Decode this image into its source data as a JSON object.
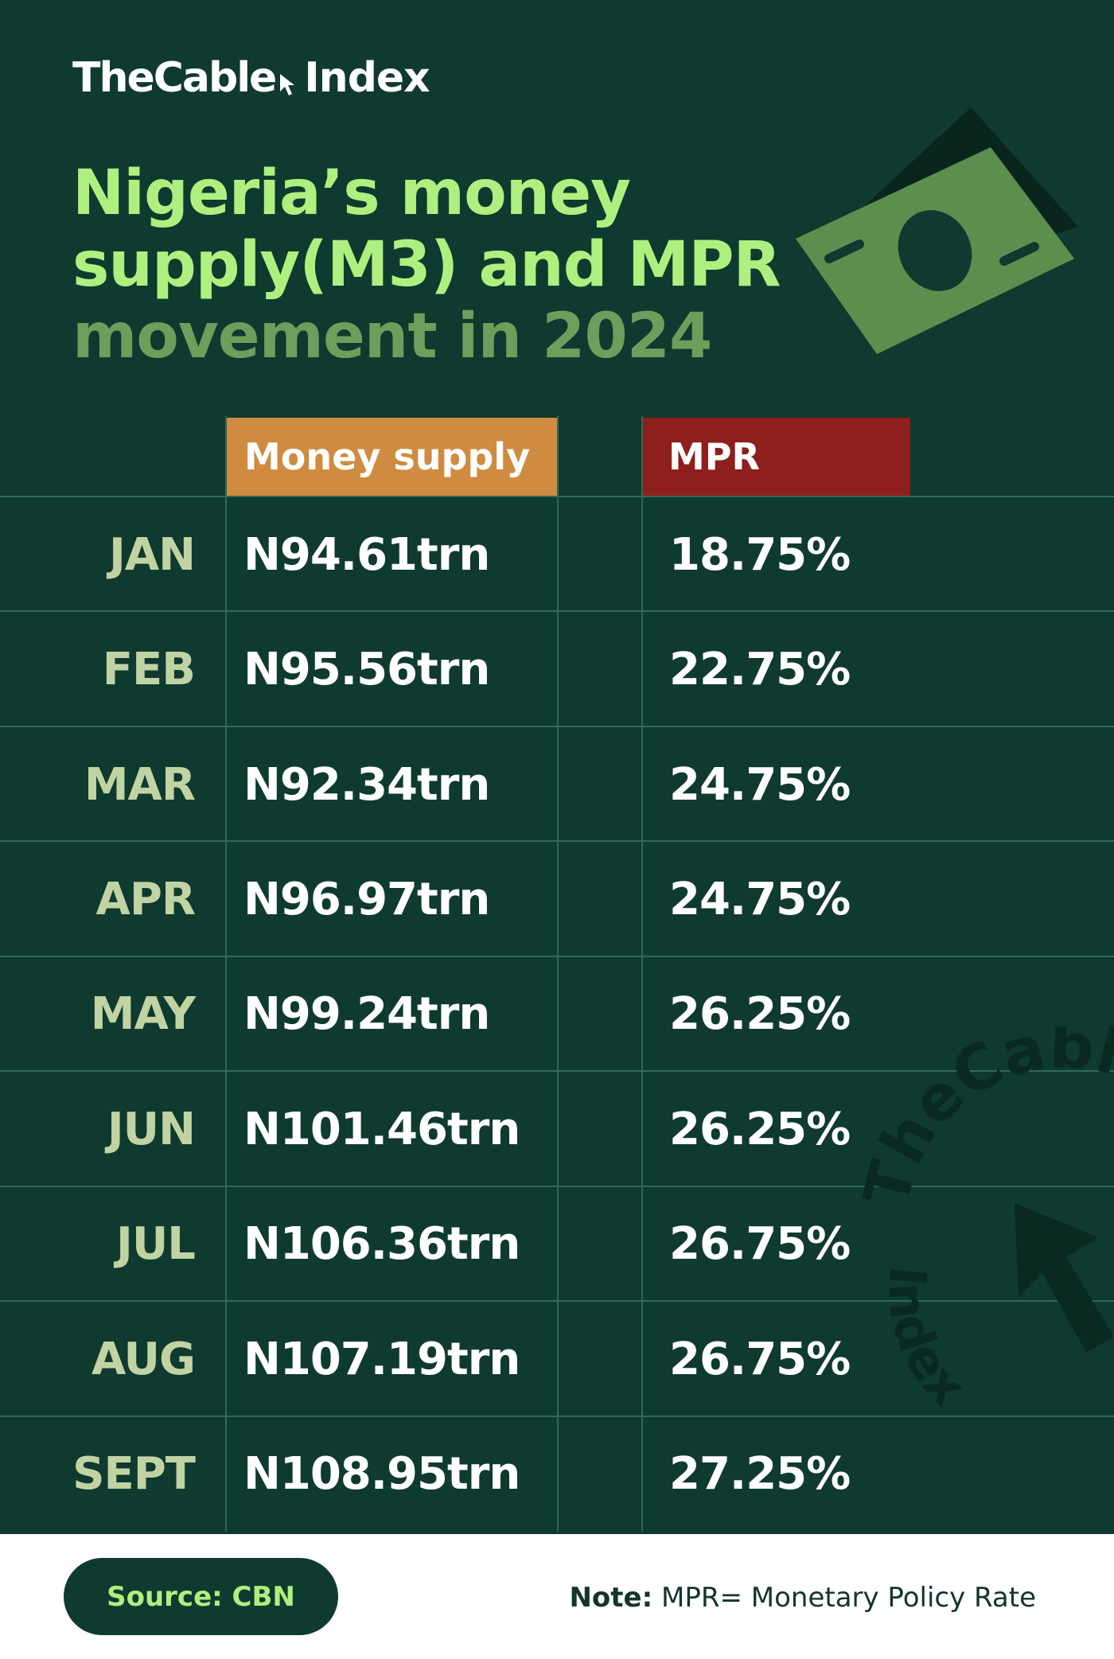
{
  "brand": {
    "name": "TheCable",
    "suffix": "Index"
  },
  "title": {
    "line1": "Nigeria’s money",
    "line2": "supply(M3) and MPR",
    "line3": "movement in 2024"
  },
  "colors": {
    "background": "#0f3a2f",
    "title_green": "#aef07f",
    "title_muted": "#6c9f5b",
    "money_header": "#cf8b3f",
    "mpr_header": "#8e1f1c",
    "month_text": "#c1d3a3"
  },
  "chart_data": {
    "type": "table",
    "columns": [
      "",
      "Money supply",
      "MPR"
    ],
    "rows": [
      {
        "month": "JAN",
        "money_supply": "N94.61trn",
        "mpr": "18.75%"
      },
      {
        "month": "FEB",
        "money_supply": "N95.56trn",
        "mpr": "22.75%"
      },
      {
        "month": "MAR",
        "money_supply": "N92.34trn",
        "mpr": "24.75%"
      },
      {
        "month": "APR",
        "money_supply": "N96.97trn",
        "mpr": "24.75%"
      },
      {
        "month": "MAY",
        "money_supply": "N99.24trn",
        "mpr": "26.25%"
      },
      {
        "month": "JUN",
        "money_supply": "N101.46trn",
        "mpr": "26.25%"
      },
      {
        "month": "JUL",
        "money_supply": "N106.36trn",
        "mpr": "26.75%"
      },
      {
        "month": "AUG",
        "money_supply": "N107.19trn",
        "mpr": "26.75%"
      },
      {
        "month": "SEPT",
        "money_supply": "N108.95trn",
        "mpr": "27.25%"
      }
    ],
    "money_supply_trn": [
      94.61,
      95.56,
      92.34,
      96.97,
      99.24,
      101.46,
      106.36,
      107.19,
      108.95
    ],
    "mpr_percent": [
      18.75,
      22.75,
      24.75,
      24.75,
      26.25,
      26.25,
      26.75,
      26.75,
      27.25
    ]
  },
  "footer": {
    "source": "Source: CBN",
    "note_label": "Note:",
    "note_text": " MPR= Monetary Policy Rate"
  }
}
